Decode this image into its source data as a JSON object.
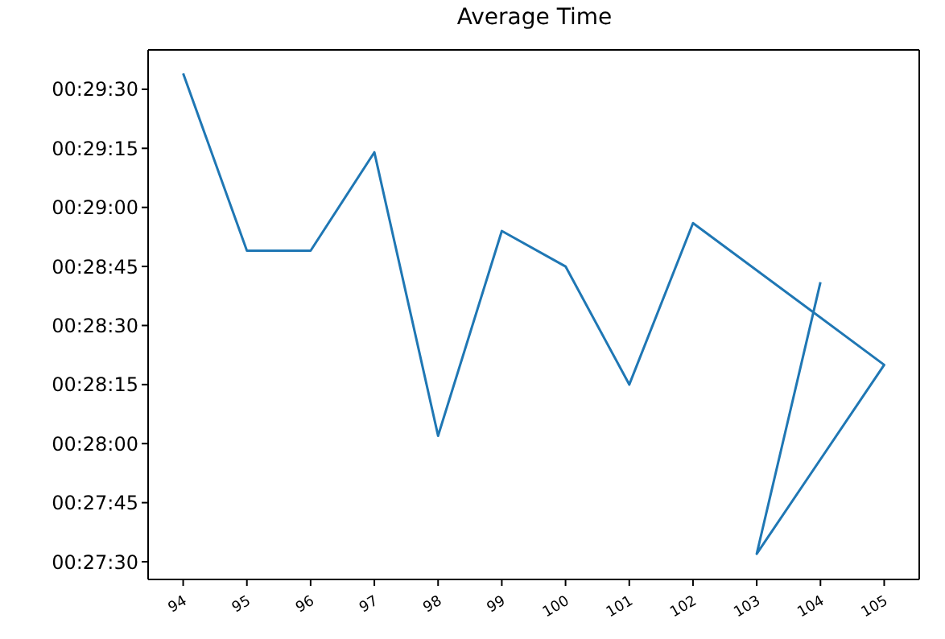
{
  "chart_data": {
    "type": "line",
    "title": "Average Time",
    "x": [
      94,
      95,
      96,
      97,
      98,
      99,
      100,
      101,
      102,
      105,
      103,
      104
    ],
    "series": [
      {
        "color": "#1f77b4",
        "values": [
          1774,
          1729,
          1729,
          1754,
          1682,
          1734,
          1725,
          1695,
          1736,
          1700,
          1652,
          1721
        ]
      }
    ],
    "xlim": [
      93.45,
      105.55
    ],
    "xticks": [
      94,
      95,
      96,
      97,
      98,
      99,
      100,
      101,
      102,
      103,
      104,
      105
    ],
    "ylim": [
      1645.5,
      1780
    ],
    "yticks": [
      {
        "value": 1650,
        "label": "00:27:30"
      },
      {
        "value": 1665,
        "label": "00:27:45"
      },
      {
        "value": 1680,
        "label": "00:28:00"
      },
      {
        "value": 1695,
        "label": "00:28:15"
      },
      {
        "value": 1710,
        "label": "00:28:30"
      },
      {
        "value": 1725,
        "label": "00:28:45"
      },
      {
        "value": 1740,
        "label": "00:29:00"
      },
      {
        "value": 1755,
        "label": "00:29:15"
      },
      {
        "value": 1770,
        "label": "00:29:30"
      }
    ],
    "grid": false,
    "legend": false,
    "marker": "none",
    "line_style": "solid"
  }
}
